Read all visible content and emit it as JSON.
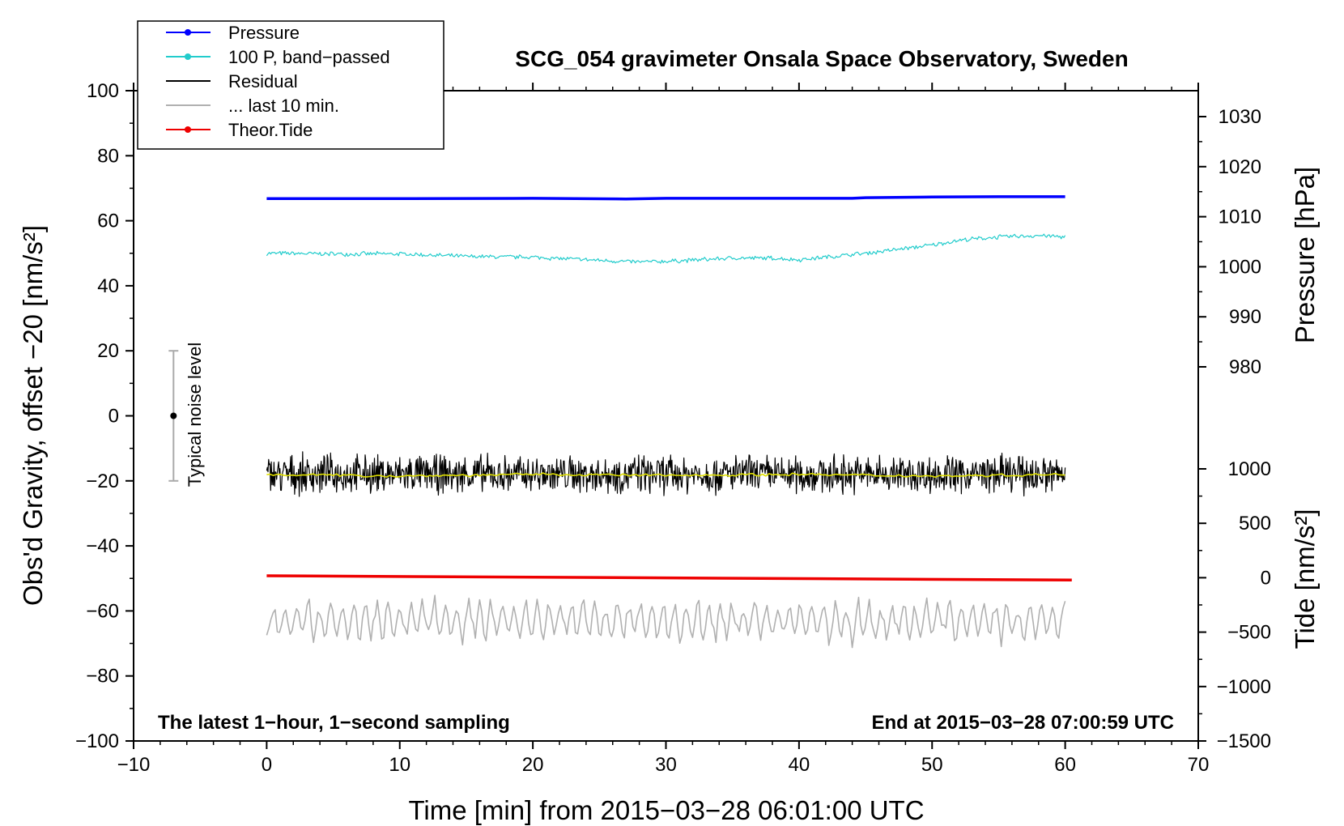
{
  "chart_data": {
    "type": "line",
    "title": "SCG_054 gravimeter Onsala Space Observatory, Sweden",
    "xlabel": "Time [min] from 2015−03−28 06:01:00 UTC",
    "ylabel_left": "Obs'd Gravity, offset −20 [nm/s²]",
    "ylabel_pressure": "Pressure [hPa]",
    "ylabel_tide": "Tide [nm/s²]",
    "xlim": [
      -10,
      70
    ],
    "ylim": [
      -100,
      100
    ],
    "x_ticks": [
      "−10",
      "0",
      "10",
      "20",
      "30",
      "40",
      "50",
      "60",
      "70"
    ],
    "y_ticks": [
      "100",
      "80",
      "60",
      "40",
      "20",
      "0",
      "−20",
      "−40",
      "−60",
      "−80",
      "−100"
    ],
    "pressure_ticks": [
      "1030",
      "1020",
      "1010",
      "1000",
      "990",
      "980"
    ],
    "tide_ticks": [
      "1000",
      "500",
      "0",
      "−500",
      "−1000",
      "−1500"
    ],
    "note_left": "The latest 1−hour, 1−second sampling",
    "note_right": "End at 2015−03−28 07:00:59 UTC",
    "noise_label": "Typical noise level",
    "noise_bar": {
      "x": -7,
      "center": 0,
      "low": -20,
      "high": 20
    },
    "legend": [
      {
        "label": "Pressure",
        "color": "#0000ff",
        "marker": true
      },
      {
        "label": "100 P, band−passed",
        "color": "#22cccc",
        "marker": true
      },
      {
        "label": "Residual",
        "color": "#000000",
        "marker": false
      },
      {
        "label": "... last 10 min.",
        "color": "#b0b0b0",
        "marker": false
      },
      {
        "label": "Theor.Tide",
        "color": "#ee0000",
        "marker": true
      }
    ],
    "series": [
      {
        "name": "Pressure",
        "color": "#0000ff",
        "axis": "left",
        "x": [
          0,
          10,
          20,
          27,
          30,
          40,
          44,
          45,
          50,
          55,
          60
        ],
        "y": [
          66.8,
          66.8,
          66.9,
          66.7,
          66.9,
          66.9,
          66.9,
          67.1,
          67.3,
          67.4,
          67.4
        ]
      },
      {
        "name": "100 P, band-passed",
        "color": "#22cccc",
        "axis": "left",
        "x": [
          0,
          5,
          10,
          15,
          20,
          25,
          28,
          30,
          35,
          38,
          40,
          45,
          50,
          52,
          55,
          58,
          60
        ],
        "y": [
          50,
          49.8,
          49.8,
          49,
          48.8,
          47.8,
          47.3,
          47.5,
          48.5,
          48.5,
          48,
          50,
          52.5,
          54,
          55,
          55.5,
          55
        ],
        "noise": 0.8
      },
      {
        "name": "Residual",
        "color": "#000000",
        "axis": "left",
        "x": [
          0,
          60
        ],
        "y": [
          -18,
          -18
        ],
        "noise": 7
      },
      {
        "name": "Residual (smoothed)",
        "color": "#e0e000",
        "axis": "left",
        "x": [
          0,
          10,
          20,
          30,
          40,
          50,
          60
        ],
        "y": [
          -18,
          -18.5,
          -18,
          -18.3,
          -18,
          -18.5,
          -18
        ],
        "noise": 0.5
      },
      {
        "name": "... last 10 min.",
        "color": "#b0b0b0",
        "axis": "left",
        "x": [
          0,
          60
        ],
        "y": [
          -63,
          -63
        ],
        "noise": 6
      },
      {
        "name": "Theor.Tide",
        "color": "#ee0000",
        "axis": "left",
        "x": [
          0,
          60.5
        ],
        "y": [
          -49.2,
          -50.5
        ]
      }
    ]
  }
}
